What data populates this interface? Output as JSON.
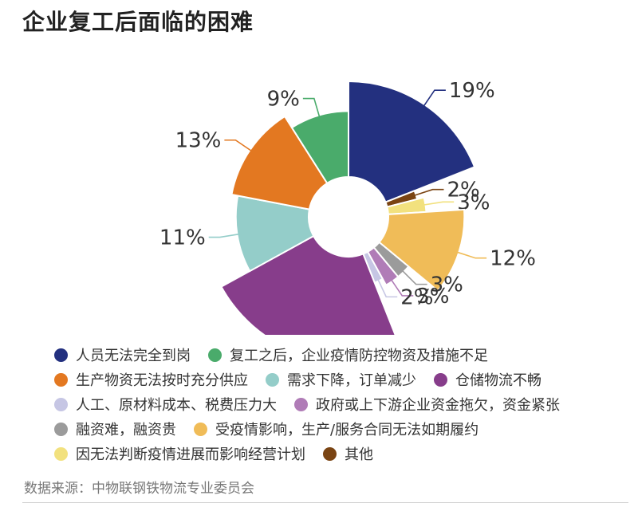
{
  "title": "企业复工后面临的困难",
  "source": "数据来源：中物联钢铁物流专业委员会",
  "chart_data": {
    "type": "pie",
    "variant": "nightingale-rose",
    "title": "企业复工后面临的困难",
    "slices": [
      {
        "label": "人员无法完全到岗",
        "value": 19,
        "text": "19%",
        "color": "#23307f"
      },
      {
        "label": "其他",
        "value": 2,
        "text": "2%",
        "color": "#7a4413"
      },
      {
        "label": "因无法判断疫情进展而影响经营计划",
        "value": 3,
        "text": "3%",
        "color": "#f2e17e"
      },
      {
        "label": "受疫情影响，生产/服务合同无法如期履约",
        "value": 12,
        "text": "12%",
        "color": "#f0bc58"
      },
      {
        "label": "融资难，融资贵",
        "value": 3,
        "text": "3%",
        "color": "#9b9b9b"
      },
      {
        "label": "政府或上下游企业资金拖欠，资金紧张",
        "value": 3,
        "text": "3%",
        "color": "#b07cb7"
      },
      {
        "label": "人工、原材料成本、税费压力大",
        "value": 2,
        "text": "2%",
        "color": "#c6c6e4"
      },
      {
        "label": "仓储物流不畅",
        "value": 23,
        "text": "23%",
        "color": "#873d8b"
      },
      {
        "label": "需求下降，订单减少",
        "value": 11,
        "text": "11%",
        "color": "#94cdc9"
      },
      {
        "label": "生产物资无法按时充分供应",
        "value": 13,
        "text": "13%",
        "color": "#e37821"
      },
      {
        "label": "复工之后，企业疫情防控物资及措施不足",
        "value": 9,
        "text": "9%",
        "color": "#4aab6b"
      }
    ],
    "legend": [
      [
        "人员无法完全到岗",
        "复工之后，企业疫情防控物资及措施不足"
      ],
      [
        "生产物资无法按时充分供应",
        "需求下降，订单减少",
        "仓储物流不畅"
      ],
      [
        "人工、原材料成本、税费压力大",
        "政府或上下游企业资金拖欠，资金紧张"
      ],
      [
        "融资难，融资贵",
        "受疫情影响，生产/服务合同无法如期履约"
      ],
      [
        "因无法判断疫情进展而影响经营计划",
        "其他"
      ]
    ],
    "legend_position": "bottom"
  }
}
